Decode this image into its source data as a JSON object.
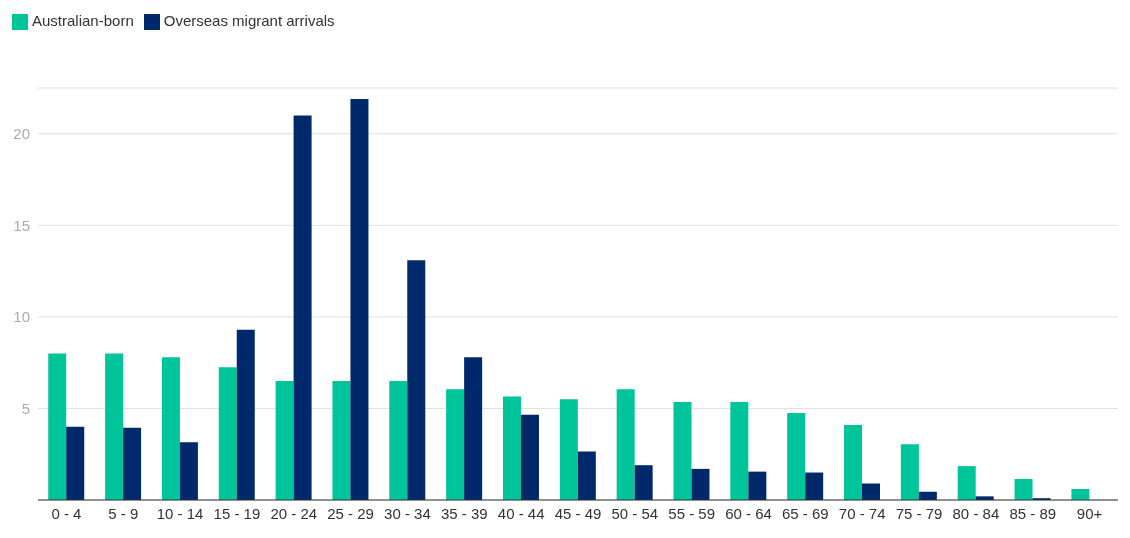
{
  "chart_data": {
    "type": "bar",
    "categories": [
      "0 - 4",
      "5 - 9",
      "10 - 14",
      "15 - 19",
      "20 - 24",
      "25 - 29",
      "30 - 34",
      "35 - 39",
      "40 - 44",
      "45 - 49",
      "50 - 54",
      "55 - 59",
      "60 - 64",
      "65 - 69",
      "70 - 74",
      "75 - 79",
      "80 - 84",
      "85 - 89",
      "90+"
    ],
    "series": [
      {
        "name": "Australian-born",
        "color": "#00c49a",
        "values": [
          8.0,
          8.0,
          7.8,
          7.25,
          6.5,
          6.5,
          6.5,
          6.05,
          5.65,
          5.5,
          6.05,
          5.35,
          5.35,
          4.75,
          4.1,
          3.05,
          1.85,
          1.15,
          0.6
        ]
      },
      {
        "name": "Overseas migrant arrivals",
        "color": "#00296b",
        "values": [
          4.0,
          3.95,
          3.15,
          9.3,
          21.0,
          21.9,
          13.1,
          7.8,
          4.65,
          2.65,
          1.9,
          1.7,
          1.55,
          1.5,
          0.9,
          0.45,
          0.2,
          0.1,
          0
        ]
      }
    ],
    "ylim": [
      0,
      22.5
    ],
    "yticks": [
      {
        "value": 0,
        "label": null
      },
      5,
      10,
      15,
      20
    ],
    "grid": "y",
    "legend": "top left"
  }
}
